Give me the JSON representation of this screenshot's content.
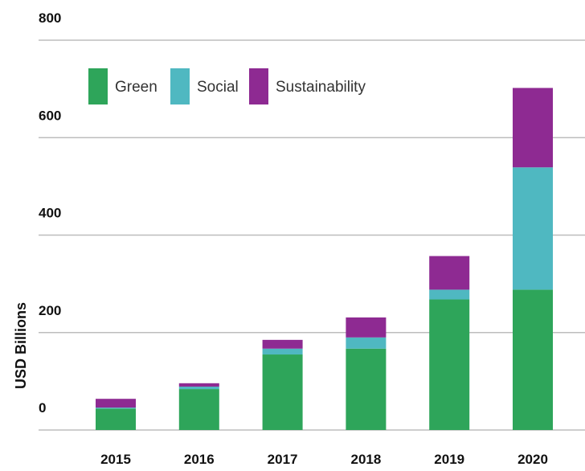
{
  "chart_data": {
    "type": "stacked_bar",
    "y_axis_label": "USD Billions",
    "categories": [
      "2015",
      "2016",
      "2017",
      "2018",
      "2019",
      "2020"
    ],
    "series": [
      {
        "name": "Green",
        "color": "#2ea55a",
        "values": [
          44,
          84,
          155,
          167,
          268,
          288
        ]
      },
      {
        "name": "Social",
        "color": "#4fb8c1",
        "values": [
          2,
          5,
          12,
          23,
          20,
          251
        ]
      },
      {
        "name": "Sustainability",
        "color": "#8e2a92",
        "values": [
          18,
          7,
          18,
          41,
          69,
          163
        ]
      }
    ],
    "ylim": [
      0,
      800
    ],
    "yticks": [
      0,
      200,
      400,
      600,
      800
    ],
    "grid": true,
    "legend": "top-left"
  }
}
